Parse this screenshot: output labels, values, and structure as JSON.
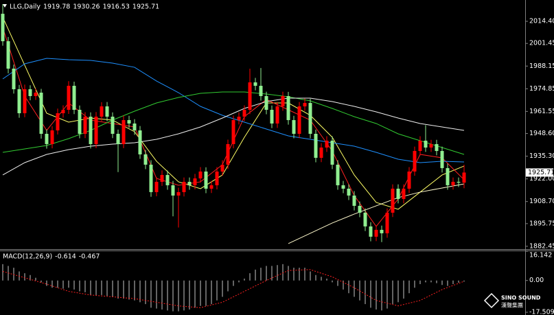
{
  "chart_data": [
    {
      "type": "candlestick",
      "title": "LLG,Daily",
      "up_color": "#ff0000",
      "down_color": "#90ee90",
      "ylim": [
        1881.2,
        2026.9
      ],
      "yticks": [
        {
          "value": 2014.4,
          "label": "2014.40"
        },
        2001.45,
        1988.15,
        1974.85,
        1961.55,
        {
          "value": 1948.6,
          "label": "1948.60"
        },
        {
          "value": 1935.3,
          "label": "1935.30"
        },
        {
          "value": 1922,
          "label": "1922.00"
        },
        {
          "value": 1908.7,
          "label": "1908.70"
        },
        1895.75,
        1882.45
      ],
      "candles": [
        [
          2018.82,
          2024.5,
          2000.1,
          2002.73
        ],
        [
          2002.73,
          2005.2,
          1983.9,
          1986.64
        ],
        [
          1986.64,
          1989.0,
          1972.0,
          1974.57
        ],
        [
          1974.57,
          1977.1,
          1957.8,
          1960.49
        ],
        [
          1960.49,
          1977.3,
          1958.2,
          1974.57
        ],
        [
          1974.57,
          1976.9,
          1968.1,
          1970.55
        ],
        [
          1970.55,
          1975.0,
          1968.3,
          1972.56
        ],
        [
          1972.56,
          1974.8,
          1945.6,
          1948.42
        ],
        [
          1948.42,
          1951.0,
          1939.7,
          1942.39
        ],
        [
          1942.39,
          1952.9,
          1939.9,
          1950.43
        ],
        [
          1950.43,
          1963.2,
          1948.0,
          1960.49
        ],
        [
          1960.49,
          1965.1,
          1957.9,
          1962.5
        ],
        [
          1962.5,
          1979.3,
          1960.1,
          1976.58
        ],
        [
          1976.58,
          1979.0,
          1960.0,
          1962.5
        ],
        [
          1962.5,
          1965.0,
          1945.8,
          1948.42
        ],
        [
          1948.42,
          1961.1,
          1945.9,
          1958.48
        ],
        [
          1958.48,
          1961.0,
          1939.8,
          1942.39
        ],
        [
          1942.39,
          1961.2,
          1940.0,
          1958.48
        ],
        [
          1958.48,
          1967.0,
          1955.9,
          1964.51
        ],
        [
          1964.51,
          1967.1,
          1955.8,
          1958.48
        ],
        [
          1958.48,
          1961.0,
          1945.9,
          1948.42
        ],
        [
          1948.42,
          1950.9,
          1926.0,
          1942.39
        ],
        [
          1942.39,
          1959.1,
          1940.0,
          1956.47
        ],
        [
          1956.47,
          1959.0,
          1951.9,
          1954.46
        ],
        [
          1954.46,
          1957.0,
          1947.8,
          1950.43
        ],
        [
          1950.43,
          1953.0,
          1933.7,
          1936.35
        ],
        [
          1936.35,
          1939.0,
          1927.7,
          1930.32
        ],
        [
          1930.32,
          1932.9,
          1911.5,
          1914.23
        ],
        [
          1914.23,
          1922.9,
          1911.8,
          1920.26
        ],
        [
          1920.26,
          1927.0,
          1917.9,
          1924.28
        ],
        [
          1924.28,
          1926.9,
          1915.6,
          1918.25
        ],
        [
          1918.25,
          1920.8,
          1900.0,
          1912.22
        ],
        [
          1912.22,
          1916.8,
          1893.5,
          1914.23
        ],
        [
          1914.23,
          1922.8,
          1911.7,
          1920.26
        ],
        [
          1920.26,
          1922.8,
          1915.6,
          1918.25
        ],
        [
          1918.25,
          1924.9,
          1915.8,
          1922.27
        ],
        [
          1922.27,
          1928.9,
          1919.8,
          1926.3
        ],
        [
          1926.3,
          1928.8,
          1913.6,
          1916.24
        ],
        [
          1916.24,
          1920.8,
          1913.7,
          1918.25
        ],
        [
          1918.25,
          1928.9,
          1915.8,
          1926.3
        ],
        [
          1926.3,
          1932.9,
          1923.8,
          1930.32
        ],
        [
          1930.32,
          1945.0,
          1927.8,
          1942.39
        ],
        [
          1942.39,
          1959.1,
          1939.9,
          1956.47
        ],
        [
          1956.47,
          1961.0,
          1953.9,
          1958.48
        ],
        [
          1958.48,
          1965.1,
          1955.9,
          1962.5
        ],
        [
          1962.5,
          1986.6,
          1960.0,
          1978.59
        ],
        [
          1978.59,
          1981.2,
          1973.9,
          1976.58
        ],
        [
          1976.58,
          1987.0,
          1967.9,
          1970.55
        ],
        [
          1970.55,
          1973.1,
          1959.9,
          1962.5
        ],
        [
          1962.5,
          1965.0,
          1951.8,
          1954.46
        ],
        [
          1954.46,
          1967.1,
          1951.9,
          1964.51
        ],
        [
          1964.51,
          1973.1,
          1961.9,
          1970.55
        ],
        [
          1970.55,
          1973.0,
          1953.8,
          1956.47
        ],
        [
          1956.47,
          1959.0,
          1945.8,
          1948.42
        ],
        [
          1948.42,
          1967.1,
          1945.9,
          1964.51
        ],
        [
          1964.51,
          1969.1,
          1961.9,
          1966.52
        ],
        [
          1966.52,
          1969.0,
          1945.8,
          1948.42
        ],
        [
          1948.42,
          1950.9,
          1931.7,
          1934.34
        ],
        [
          1934.34,
          1943.0,
          1931.8,
          1940.37
        ],
        [
          1940.37,
          1947.0,
          1937.8,
          1944.4
        ],
        [
          1944.4,
          1947.0,
          1927.7,
          1930.32
        ],
        [
          1930.32,
          1932.9,
          1915.6,
          1918.25
        ],
        [
          1918.25,
          1920.8,
          1913.6,
          1916.24
        ],
        [
          1916.24,
          1918.8,
          1909.6,
          1912.22
        ],
        [
          1912.22,
          1914.8,
          1903.5,
          1906.18
        ],
        [
          1906.18,
          1908.7,
          1899.5,
          1902.16
        ],
        [
          1902.16,
          1904.7,
          1891.4,
          1894.11
        ],
        [
          1894.11,
          1896.6,
          1885.4,
          1888.08
        ],
        [
          1888.08,
          1894.7,
          1885.5,
          1892.1
        ],
        [
          1892.1,
          1894.6,
          1884.9,
          1890.09
        ],
        [
          1890.09,
          1904.7,
          1887.5,
          1902.16
        ],
        [
          1902.16,
          1918.8,
          1899.6,
          1916.24
        ],
        [
          1916.24,
          1918.8,
          1907.6,
          1910.2
        ],
        [
          1910.2,
          1918.8,
          1907.6,
          1916.24
        ],
        [
          1916.24,
          1928.9,
          1913.7,
          1926.3
        ],
        [
          1926.3,
          1940.9,
          1923.8,
          1938.36
        ],
        [
          1938.36,
          1947.0,
          1935.8,
          1944.4
        ],
        [
          1944.4,
          1953.5,
          1937.8,
          1940.37
        ],
        [
          1940.37,
          1944.9,
          1937.8,
          1942.39
        ],
        [
          1942.39,
          1944.9,
          1935.8,
          1938.36
        ],
        [
          1938.36,
          1940.9,
          1925.7,
          1928.31
        ],
        [
          1928.31,
          1930.9,
          1915.6,
          1918.25
        ],
        [
          1918.25,
          1922.8,
          1915.7,
          1920.26
        ],
        [
          1920.26,
          1922.8,
          1917.2,
          1919.78
        ],
        [
          1919.78,
          1930.26,
          1916.53,
          1925.71
        ]
      ],
      "lines": [
        {
          "color": "#ffff66",
          "values": [
            2016.81,
            1988.65,
            1960.49,
            1955.26,
            1957.67,
            1956.47,
            1949.63,
            1932.33,
            1920.26,
            1916.24,
            1924.28,
            1946.41,
            1966.52,
            1966.52,
            1959.28,
            1946.41,
            1924.28,
            1908.19,
            1904.17,
            1914.23,
            1924.28,
            1929.51
          ]
        },
        {
          "color": "#ff2020",
          "values": [
            2010.78,
            1970.55,
            1950.43,
            1966.52,
            1956.47,
            1954.46,
            1952.44,
            1922.27,
            1918.25,
            1920.26,
            1930.32,
            1958.48,
            1968.54,
            1962.5,
            1956.47,
            1938.36,
            1912.22,
            1894.11,
            1910.2,
            1936.35,
            1934.34,
            1921.47
          ]
        },
        {
          "color": "#1e90ff",
          "values": [
            1980.61,
            1989.46,
            1992.67,
            1991.87,
            1991.47,
            1989.86,
            1987.44,
            1979.4,
            1972.56,
            1964.51,
            1959.28,
            1955.26,
            1951.24,
            1947.21,
            1945.2,
            1943.19,
            1941.18,
            1937.56,
            1933.54,
            1931.52,
            1932.33,
            1931.93
          ]
        },
        {
          "color": "#32cd32",
          "values": [
            1937.56,
            1939.57,
            1941.58,
            1945.61,
            1950.43,
            1956.47,
            1961.7,
            1966.52,
            1969.74,
            1972.16,
            1972.96,
            1972.96,
            1971.75,
            1970.15,
            1967.73,
            1963.31,
            1958.48,
            1954.46,
            1948.42,
            1944.4,
            1940.37,
            1936.35
          ]
        },
        {
          "color": "#f0f0f0",
          "values": [
            1924.28,
            1931.52,
            1936.35,
            1939.17,
            1941.18,
            1942.39,
            1943.19,
            1945.2,
            1948.42,
            1952.44,
            1957.67,
            1963.31,
            1967.33,
            1969.34,
            1969.34,
            1967.33,
            1964.51,
            1961.3,
            1957.67,
            1954.46,
            1952.44,
            1950.43
          ]
        },
        {
          "color": "#fffacd",
          "values": [
            null,
            null,
            null,
            null,
            null,
            null,
            null,
            null,
            null,
            null,
            null,
            null,
            null,
            1884.05,
            1890.09,
            1896.12,
            1901.35,
            1906.18,
            1911.01,
            1914.23,
            1916.64,
            1919.05
          ]
        }
      ]
    },
    {
      "type": "macd",
      "title": "MACD(12,26,9)",
      "hist_color": "#c8c8c8",
      "signal_color": "#ff2020",
      "ylim": [
        -17.509,
        16.142
      ],
      "yticks": [
        16.142,
        {
          "value": 0,
          "label": "0.00"
        },
        -17.509
      ],
      "histogram": [
        9,
        8,
        7,
        5,
        4,
        3,
        1.5,
        -1,
        -3,
        -4,
        -4,
        -4.5,
        -4,
        -5,
        -6,
        -6.5,
        -8,
        -8,
        -8,
        -8.5,
        -9,
        -10,
        -10,
        -10.5,
        -11,
        -12,
        -13,
        -15,
        -15.5,
        -16,
        -16.5,
        -17,
        -17,
        -16.5,
        -16,
        -15,
        -14,
        -14,
        -13,
        -11,
        -9,
        -6,
        -3,
        -1,
        1,
        4,
        6,
        7,
        8,
        8,
        8.5,
        9,
        8,
        7,
        7,
        7,
        5,
        3,
        2,
        1,
        -1,
        -3,
        -5,
        -7,
        -9,
        -11,
        -13,
        -15,
        -16,
        -16.5,
        -15.5,
        -13,
        -12,
        -10,
        -7,
        -4,
        -2,
        -1,
        -1,
        -1.5,
        -2.5,
        -3,
        -2,
        -1.2,
        -0.614
      ],
      "signal": [
        5,
        1.5,
        -2,
        -6,
        -8,
        -9,
        -10,
        -12,
        -14,
        -15,
        -12,
        -6,
        0,
        5.5,
        6,
        2,
        -4,
        -11,
        -14,
        -11,
        -5,
        -0.467
      ]
    }
  ],
  "watermark": {
    "brand": "SINO SOUND",
    "chinese": "漢聲集團"
  }
}
